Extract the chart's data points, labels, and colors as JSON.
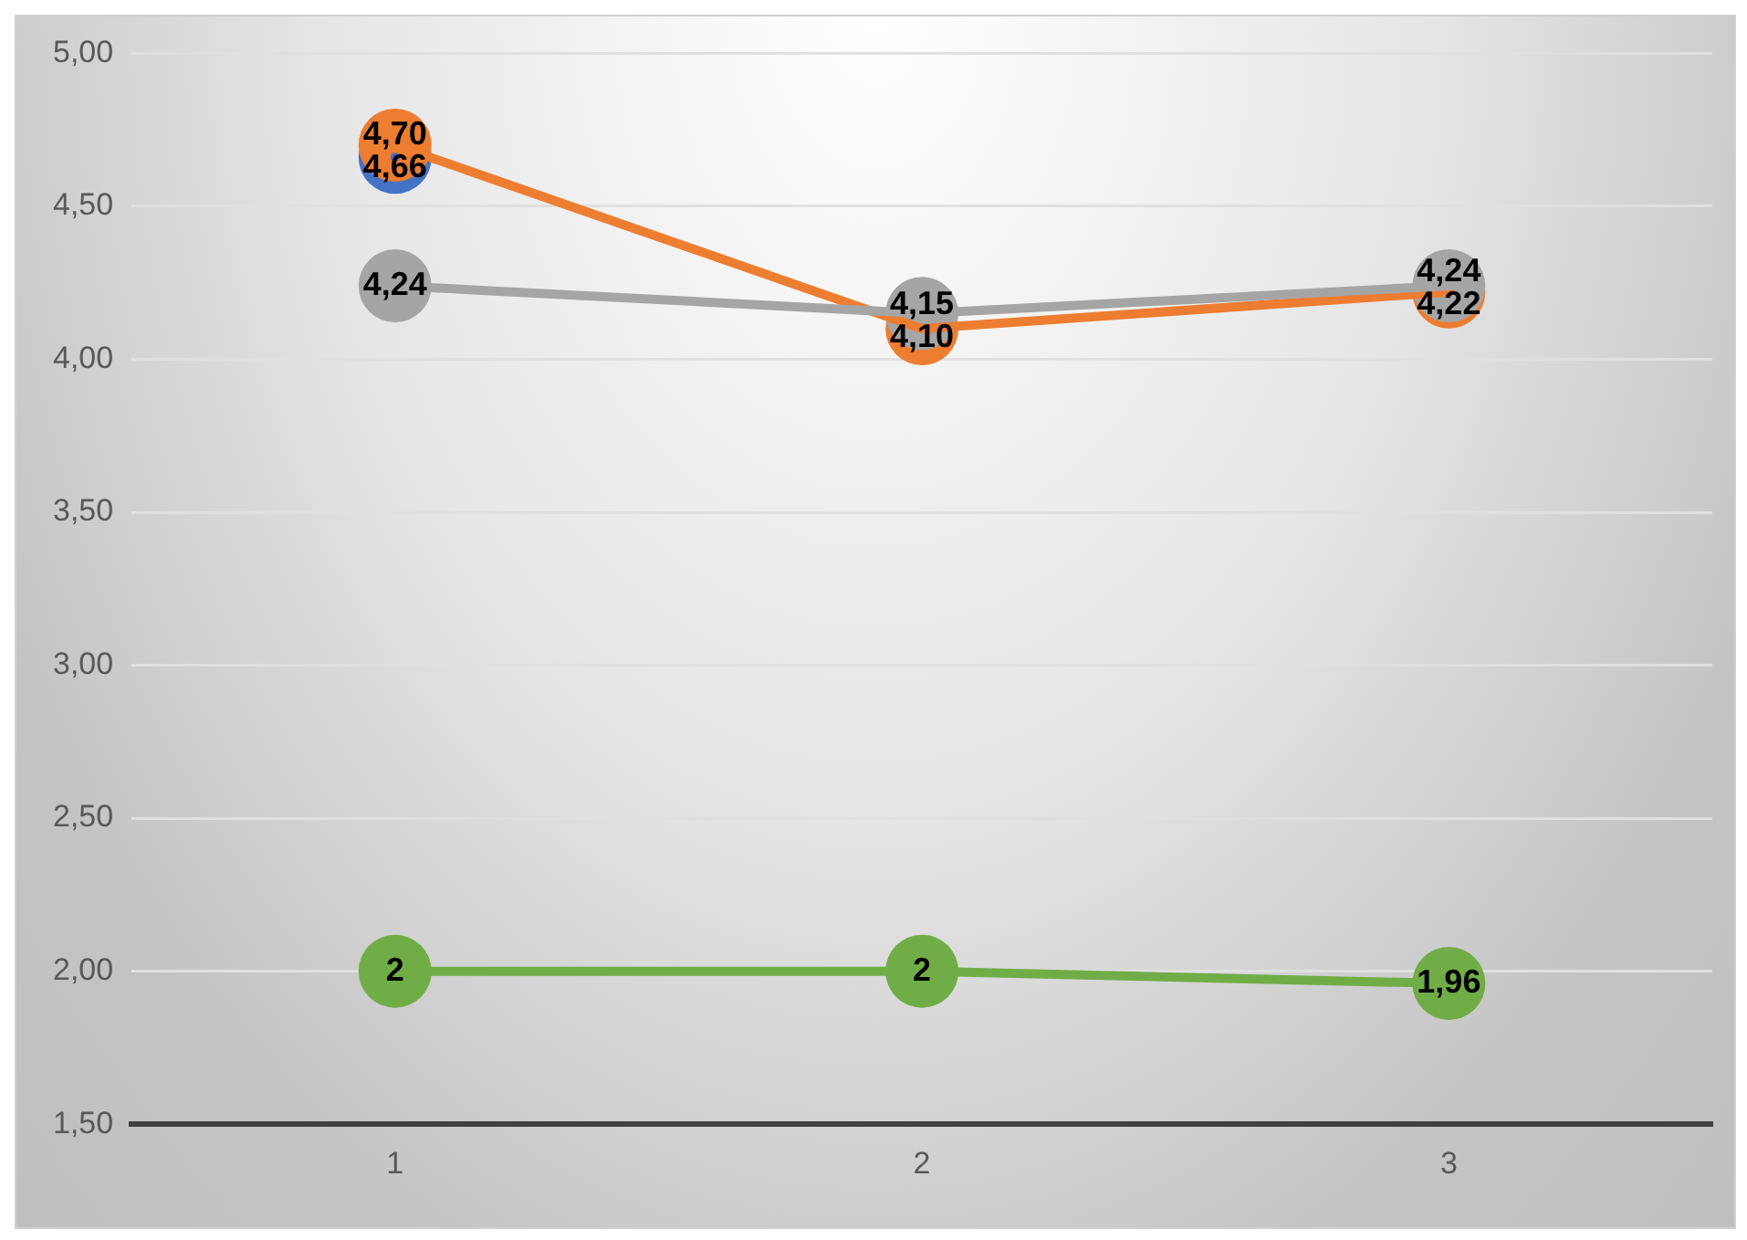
{
  "chart_data": {
    "type": "line",
    "categories": [
      "1",
      "2",
      "3"
    ],
    "series": [
      {
        "color": "#4472c4",
        "values": [
          4.66,
          null,
          null
        ],
        "value_labels": [
          "4,66",
          null,
          null
        ]
      },
      {
        "color": "#ed7d31",
        "values": [
          4.7,
          4.1,
          4.22
        ],
        "value_labels": [
          "4,70",
          "4,10",
          "4,22"
        ]
      },
      {
        "color": "#a5a5a5",
        "values": [
          4.24,
          4.15,
          4.24
        ],
        "value_labels": [
          "4,24",
          "4,15",
          "4,24"
        ]
      },
      {
        "color": "#70ad47",
        "values": [
          2,
          2,
          1.96
        ],
        "value_labels": [
          "2",
          "2",
          "1,96"
        ]
      }
    ],
    "ylim": [
      1.5,
      5
    ],
    "yticks": [
      {
        "value": 1.5,
        "label": "1,50"
      },
      {
        "value": 2,
        "label": "2,00"
      },
      {
        "value": 2.5,
        "label": "2,50"
      },
      {
        "value": 3,
        "label": "3,00"
      },
      {
        "value": 3.5,
        "label": "3,50"
      },
      {
        "value": 4,
        "label": "4,00"
      },
      {
        "value": 4.5,
        "label": "4,50"
      },
      {
        "value": 5,
        "label": "5,00"
      }
    ],
    "grid": "y",
    "legend": false,
    "marker": "circle",
    "line_style": "solid"
  }
}
